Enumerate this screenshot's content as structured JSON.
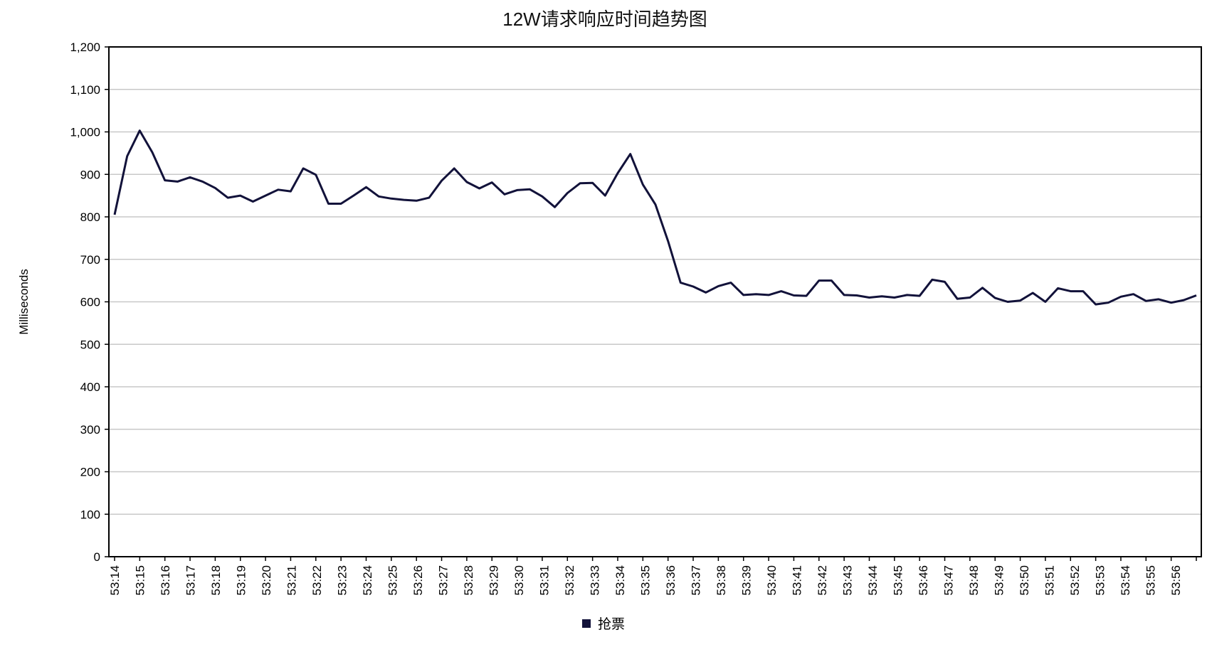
{
  "chart_data": {
    "type": "line",
    "title": "12W请求响应时间趋势图",
    "xlabel": "",
    "ylabel": "Milliseconds",
    "ylim": [
      0,
      1200
    ],
    "yticks": [
      "0",
      "100",
      "200",
      "300",
      "400",
      "500",
      "600",
      "700",
      "800",
      "900",
      "1,000",
      "1,100",
      "1,200"
    ],
    "grid": true,
    "legend_position": "bottom",
    "x_tick_labels": [
      "53:14",
      "53:15",
      "53:16",
      "53:17",
      "53:18",
      "53:19",
      "53:20",
      "53:21",
      "53:22",
      "53:23",
      "53:24",
      "53:25",
      "53:26",
      "53:27",
      "53:28",
      "53:29",
      "53:30",
      "53:31",
      "53:32",
      "53:33",
      "53:34",
      "53:35",
      "53:36",
      "53:37",
      "53:38",
      "53:39",
      "53:40",
      "53:41",
      "53:42",
      "53:43",
      "53:44",
      "53:45",
      "53:46",
      "53:47",
      "53:48",
      "53:49",
      "53:50",
      "53:51",
      "53:52",
      "53:53",
      "53:54",
      "53:55",
      "53:56"
    ],
    "series": [
      {
        "name": "抢票",
        "color": "#12123a",
        "values": [
          805,
          943,
          1003,
          952,
          886,
          883,
          893,
          883,
          868,
          845,
          850,
          836,
          850,
          864,
          860,
          914,
          899,
          831,
          831,
          850,
          870,
          848,
          843,
          840,
          838,
          845,
          885,
          914,
          882,
          867,
          881,
          853,
          863,
          865,
          848,
          823,
          856,
          879,
          880,
          850,
          903,
          948,
          876,
          829,
          743,
          645,
          636,
          622,
          637,
          645,
          616,
          618,
          616,
          625,
          615,
          614,
          650,
          650,
          616,
          615,
          610,
          613,
          610,
          616,
          614,
          652,
          647,
          607,
          610,
          633,
          609,
          600,
          603,
          621,
          600,
          632,
          625,
          625,
          594,
          598,
          612,
          618,
          602,
          606,
          598,
          604,
          615
        ]
      }
    ]
  }
}
